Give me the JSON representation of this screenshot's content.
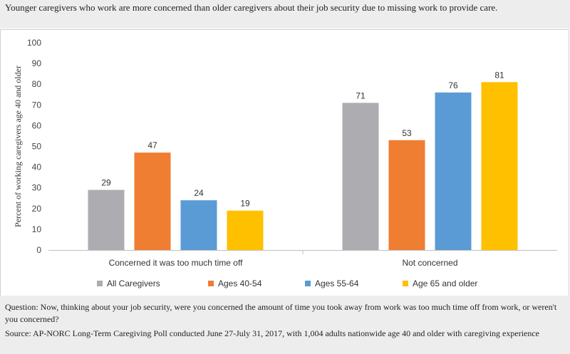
{
  "title": "Younger caregivers who work are more concerned than older caregivers about their job security due to missing work to provide care.",
  "footnotes": {
    "question": "Question: Now, thinking about your job security, were you concerned the amount of time you took away from work was too much time off from work, or weren't you concerned?",
    "source": "Source: AP-NORC Long-Term Caregiving Poll conducted June 27-July 31, 2017, with 1,004 adults nationwide age 40 and older with caregiving experience"
  },
  "chart_data": {
    "type": "bar",
    "categories": [
      "Concerned it was too much time off",
      "Not concerned"
    ],
    "series": [
      {
        "name": "All Caregivers",
        "values": [
          29,
          71
        ],
        "color": "#adadb1"
      },
      {
        "name": "Ages 40-54",
        "values": [
          47,
          53
        ],
        "color": "#ef7d32"
      },
      {
        "name": "Ages 55-64",
        "values": [
          24,
          76
        ],
        "color": "#5b9bd5"
      },
      {
        "name": "Age 65 and older",
        "values": [
          19,
          81
        ],
        "color": "#ffc000"
      }
    ],
    "ylabel": "Percent of working caregivers age 40 and older",
    "xlabel": "",
    "ylim": [
      0,
      100
    ],
    "yticks": [
      0,
      10,
      20,
      30,
      40,
      50,
      60,
      70,
      80,
      90,
      100
    ],
    "grid": false,
    "data_labels": true,
    "legend_position": "bottom"
  }
}
